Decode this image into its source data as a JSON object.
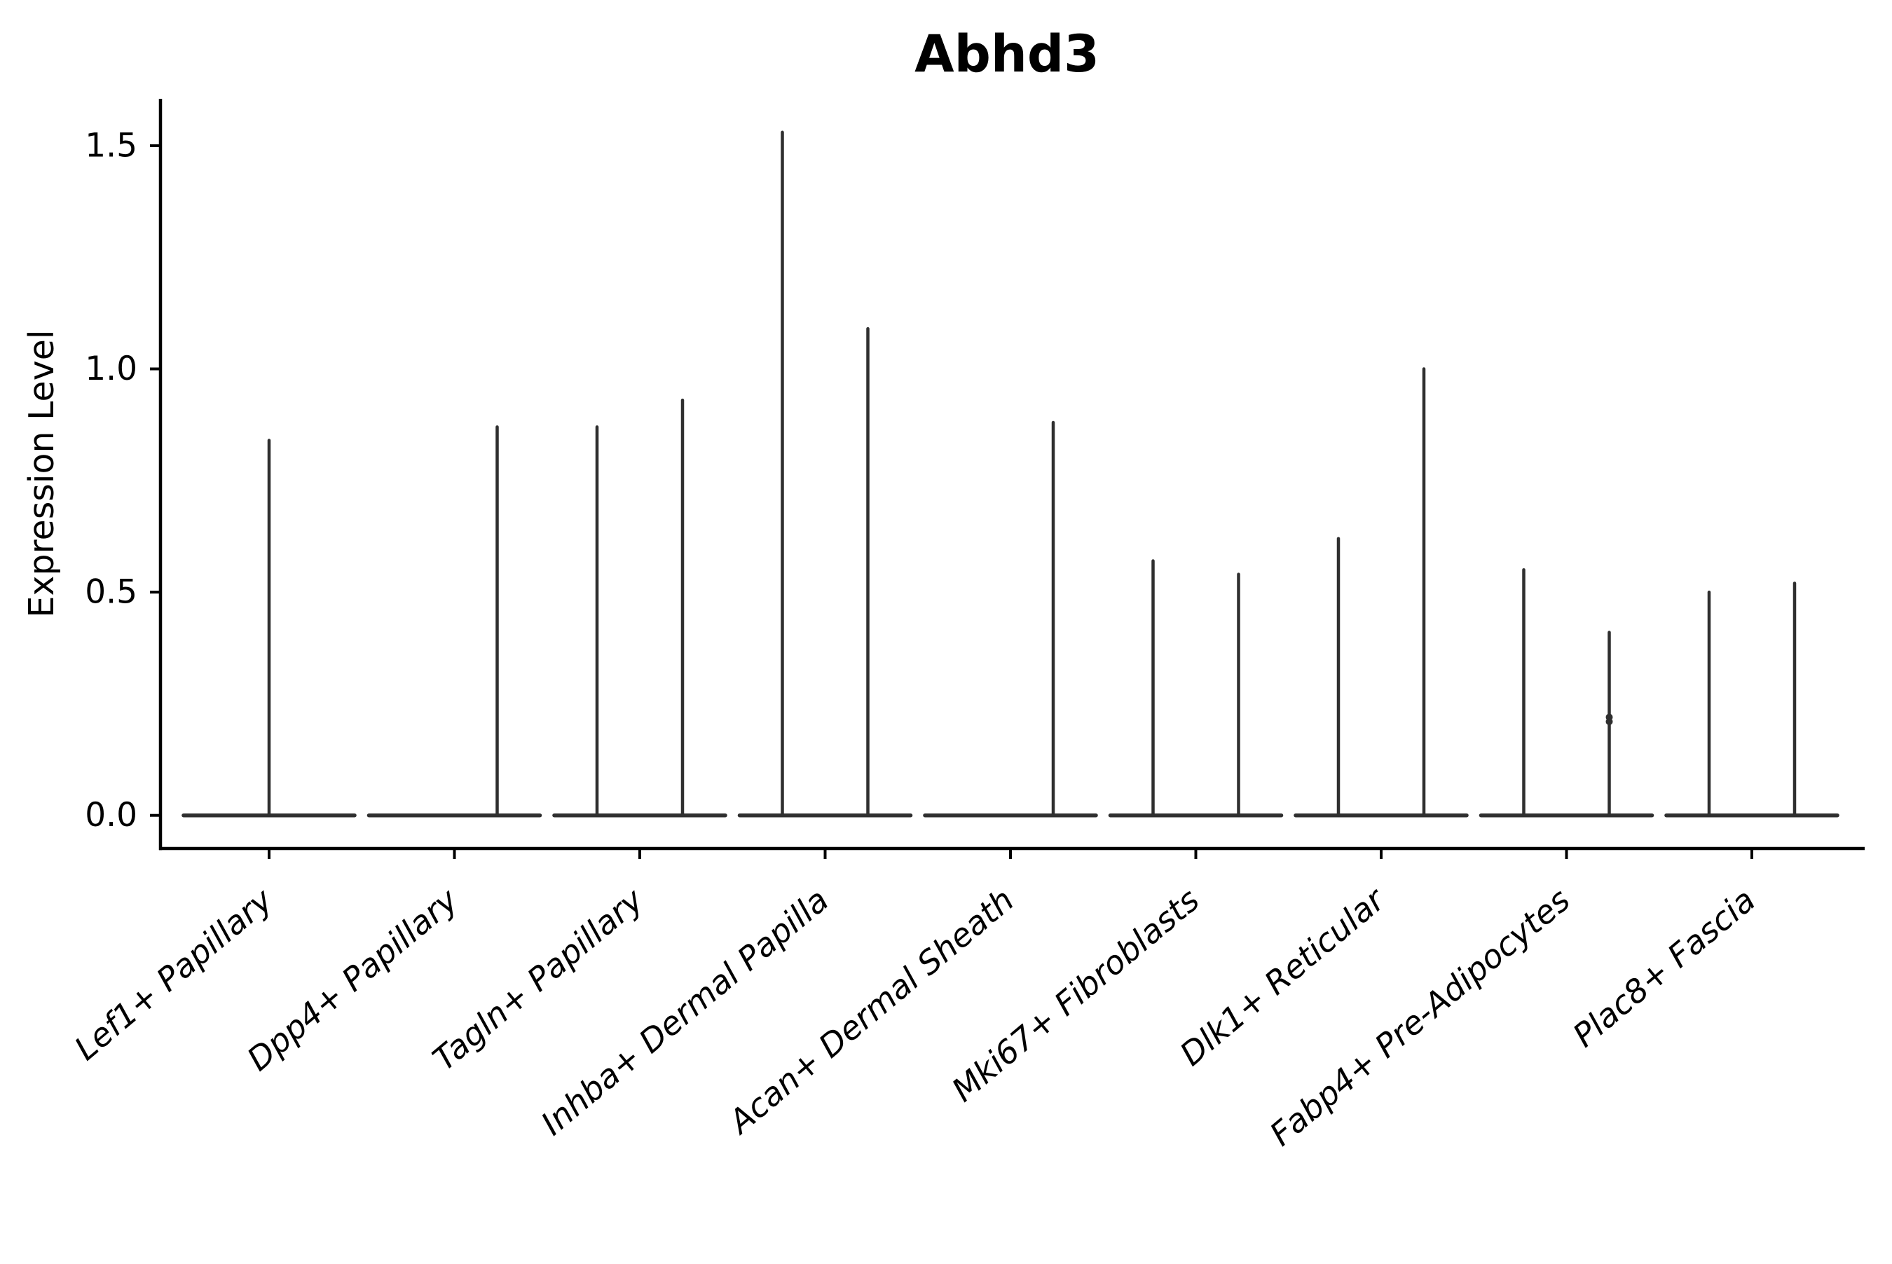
{
  "figure": {
    "background": "#ffffff"
  },
  "chart_data": {
    "type": "violin",
    "title": "Abhd3",
    "ylabel": "Expression Level",
    "xlabel": "",
    "ylim": [
      -0.07,
      1.6
    ],
    "yticks": [
      0.0,
      0.5,
      1.0,
      1.5
    ],
    "ytick_labels": [
      "0.0",
      "0.5",
      "1.0",
      "1.5"
    ],
    "categories": [
      "Lef1+ Papillary",
      "Dpp4+ Papillary",
      "Tagln+ Papillary",
      "Inhba+ Dermal Papilla",
      "Acan+ Dermal Sheath",
      "Mki67+ Fibroblasts",
      "Dlk1+ Reticular",
      "Fabp4+ Pre-Adipocytes",
      "Plac8+ Fascia"
    ],
    "x_tick_rotation_deg": 40,
    "x_tick_style": "italic",
    "grid": false,
    "legend": null,
    "violin_color": "#2f2f2f",
    "axis_color": "#000000",
    "series": [
      {
        "category": "Lef1+ Papillary",
        "violins": [
          {
            "slot": "center",
            "max_expression": 0.84
          }
        ]
      },
      {
        "category": "Dpp4+ Papillary",
        "violins": [
          {
            "slot": "left",
            "max_expression": 0.0
          },
          {
            "slot": "right",
            "max_expression": 0.87
          }
        ]
      },
      {
        "category": "Tagln+ Papillary",
        "violins": [
          {
            "slot": "left",
            "max_expression": 0.87
          },
          {
            "slot": "right",
            "max_expression": 0.93
          }
        ]
      },
      {
        "category": "Inhba+ Dermal Papilla",
        "violins": [
          {
            "slot": "left",
            "max_expression": 1.53
          },
          {
            "slot": "right",
            "max_expression": 1.09
          }
        ]
      },
      {
        "category": "Acan+ Dermal Sheath",
        "violins": [
          {
            "slot": "left",
            "max_expression": 0.0
          },
          {
            "slot": "right",
            "max_expression": 0.88
          }
        ]
      },
      {
        "category": "Mki67+ Fibroblasts",
        "violins": [
          {
            "slot": "left",
            "max_expression": 0.57
          },
          {
            "slot": "right",
            "max_expression": 0.54
          }
        ]
      },
      {
        "category": "Dlk1+ Reticular",
        "violins": [
          {
            "slot": "left",
            "max_expression": 0.62
          },
          {
            "slot": "right",
            "max_expression": 1.0
          }
        ]
      },
      {
        "category": "Fabp4+ Pre-Adipocytes",
        "violins": [
          {
            "slot": "left",
            "max_expression": 0.55
          },
          {
            "slot": "right",
            "max_expression": 0.41,
            "density_bumps": [
              0.22,
              0.21
            ]
          }
        ]
      },
      {
        "category": "Plac8+ Fascia",
        "violins": [
          {
            "slot": "left",
            "max_expression": 0.5
          },
          {
            "slot": "right",
            "max_expression": 0.52
          }
        ]
      }
    ]
  }
}
